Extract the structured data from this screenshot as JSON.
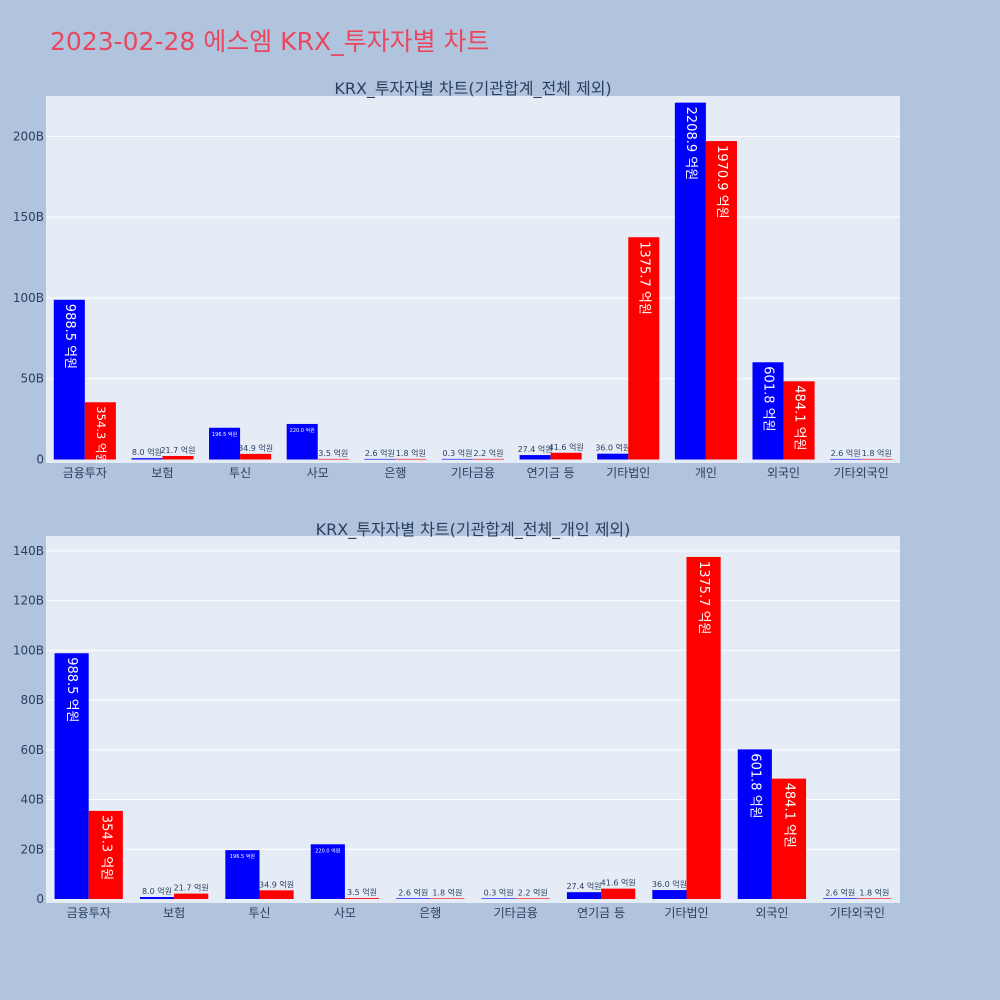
{
  "page_title": "2023-02-28 에스엠 KRX_투자자별 차트",
  "colors": {
    "background": "#b0c4de",
    "plot_bg": "#e5ecf6",
    "title": "#e8475f",
    "series_a": "#0000ff",
    "series_b": "#ff0000"
  },
  "chart_data": [
    {
      "type": "bar",
      "title": "KRX_투자자별 차트(기관합계_전체 제외)",
      "categories": [
        "금융투자",
        "보험",
        "투신",
        "사모",
        "은행",
        "기타금융",
        "연기금 등",
        "기타법인",
        "개인",
        "외국인",
        "기타외국인"
      ],
      "series": [
        {
          "color": "#0000ff",
          "values": [
            98.85,
            0.8,
            19.65,
            22.0,
            0.26,
            0.03,
            2.74,
            3.6,
            220.89,
            60.18,
            0.26
          ],
          "labels": [
            "988.5 억원",
            "8.0 억원",
            "196.5 억원",
            "220.0 억원",
            "2.6 억원",
            "0.3 억원",
            "27.4 억원",
            "36.0 억원",
            "2208.9 억원",
            "601.8 억원",
            "2.6 억원"
          ]
        },
        {
          "color": "#ff0000",
          "values": [
            35.43,
            2.17,
            3.49,
            0.35,
            0.18,
            0.22,
            4.16,
            137.57,
            197.09,
            48.41,
            0.18
          ],
          "labels": [
            "354.3 억원",
            "21.7 억원",
            "34.9 억원",
            "3.5 억원",
            "1.8 억원",
            "2.2 억원",
            "41.6 억원",
            "1375.7 억원",
            "1970.9 억원",
            "484.1 억원",
            "1.8 억원"
          ]
        }
      ],
      "ylim": [
        0,
        225
      ],
      "yticks": [
        0,
        50,
        100,
        150,
        200
      ],
      "ytick_labels": [
        "0",
        "50B",
        "100B",
        "150B",
        "200B"
      ],
      "grid": true
    },
    {
      "type": "bar",
      "title": "KRX_투자자별 차트(기관합계_전체_개인 제외)",
      "categories": [
        "금융투자",
        "보험",
        "투신",
        "사모",
        "은행",
        "기타금융",
        "연기금 등",
        "기타법인",
        "외국인",
        "기타외국인"
      ],
      "series": [
        {
          "color": "#0000ff",
          "values": [
            98.85,
            0.8,
            19.65,
            22.0,
            0.26,
            0.03,
            2.74,
            3.6,
            60.18,
            0.26
          ],
          "labels": [
            "988.5 억원",
            "8.0 억원",
            "196.5 억원",
            "220.0 억원",
            "2.6 억원",
            "0.3 억원",
            "27.4 억원",
            "36.0 억원",
            "601.8 억원",
            "2.6 억원"
          ]
        },
        {
          "color": "#ff0000",
          "values": [
            35.43,
            2.17,
            3.49,
            0.35,
            0.18,
            0.22,
            4.16,
            137.57,
            48.41,
            0.18
          ],
          "labels": [
            "354.3 억원",
            "21.7 억원",
            "34.9 억원",
            "3.5 억원",
            "1.8 억원",
            "2.2 억원",
            "41.6 억원",
            "1375.7 억원",
            "484.1 억원",
            "1.8 억원"
          ]
        }
      ],
      "ylim": [
        0,
        146
      ],
      "yticks": [
        0,
        20,
        40,
        60,
        80,
        100,
        120,
        140
      ],
      "ytick_labels": [
        "0",
        "20B",
        "40B",
        "60B",
        "80B",
        "100B",
        "120B",
        "140B"
      ],
      "grid": true
    }
  ]
}
